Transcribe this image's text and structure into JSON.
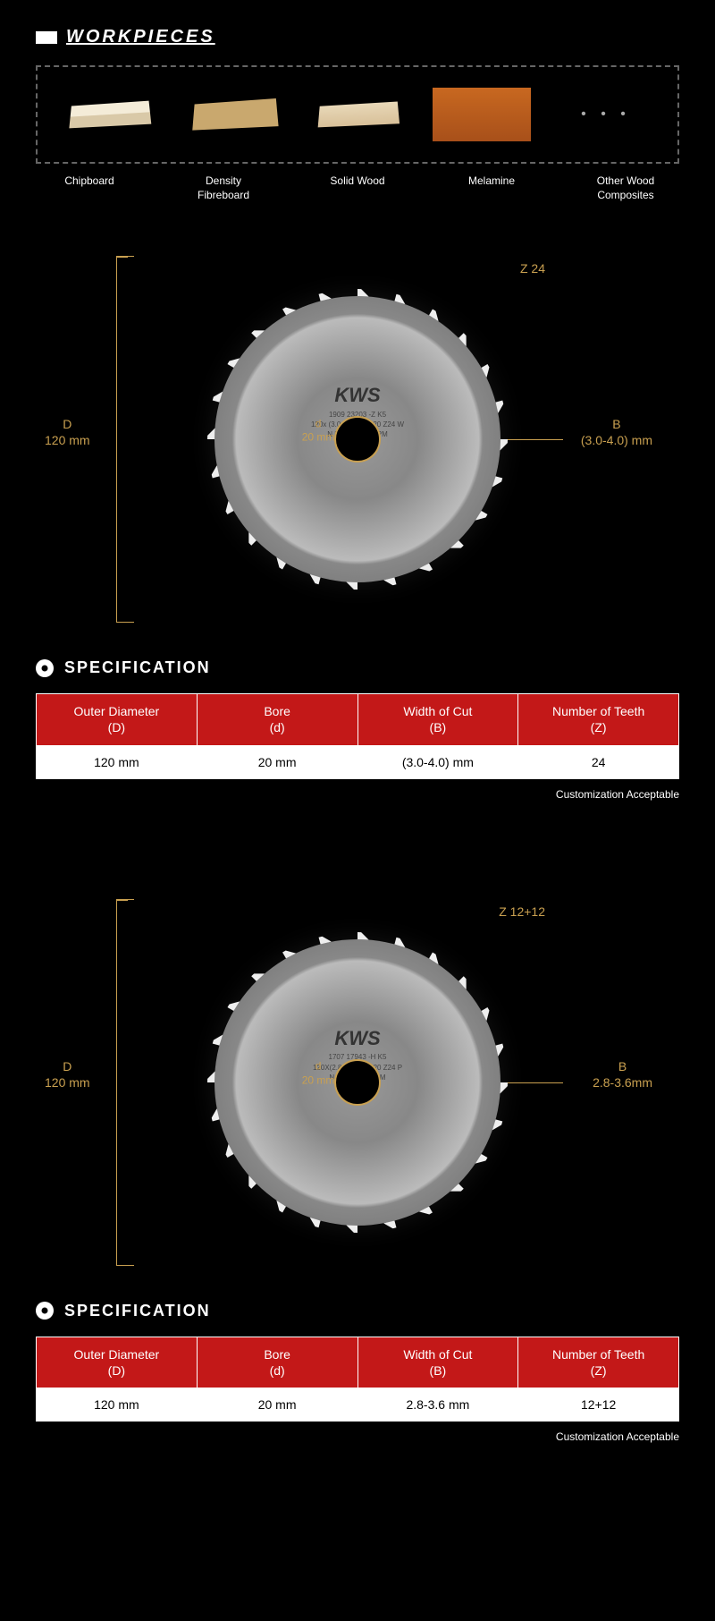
{
  "header": {
    "workpieces_title": "WORKPIECES",
    "spec_title": "SPECIFICATION",
    "customization_note": "Customization Acceptable"
  },
  "workpieces": {
    "items": [
      {
        "label": "Chipboard"
      },
      {
        "label": "Density\nFibreboard"
      },
      {
        "label": "Solid Wood"
      },
      {
        "label": "Melamine"
      },
      {
        "label": "Other Wood\nComposites"
      }
    ],
    "dots": "•   •   •"
  },
  "blade1": {
    "brand": "KWS",
    "brand_sub1": "1909 23203 -Z K5",
    "brand_sub2": "120x (3.0-4.0) /2.2x20 Z24 W",
    "brand_sub3": "N.MAX 12000RPM",
    "D_label": "D",
    "D_value": "120 mm",
    "d_label": "d",
    "d_value": "20 mm",
    "Z_label": "Z 24",
    "B_label": "B",
    "B_value": "(3.0-4.0) mm"
  },
  "spec1": {
    "columns": [
      {
        "h1": "Outer Diameter",
        "h2": "(D)"
      },
      {
        "h1": "Bore",
        "h2": "(d)"
      },
      {
        "h1": "Width of Cut",
        "h2": "(B)"
      },
      {
        "h1": "Number of Teeth",
        "h2": "(Z)"
      }
    ],
    "row": [
      "120 mm",
      "20 mm",
      "(3.0-4.0) mm",
      "24"
    ]
  },
  "blade2": {
    "brand": "KWS",
    "brand_sub1": "1707 17943 -H K5",
    "brand_sub2": "120X(2.8-3.6)/2.2X20 Z24 P",
    "brand_sub3": "N.MAX 1200RPM",
    "D_label": "D",
    "D_value": "120 mm",
    "d_label": "d",
    "d_value": "20 mm",
    "Z_label": "Z 12+12",
    "B_label": "B",
    "B_value": "2.8-3.6mm"
  },
  "spec2": {
    "columns": [
      {
        "h1": "Outer Diameter",
        "h2": "(D)"
      },
      {
        "h1": "Bore",
        "h2": "(d)"
      },
      {
        "h1": "Width of Cut",
        "h2": "(B)"
      },
      {
        "h1": "Number of Teeth",
        "h2": "(Z)"
      }
    ],
    "row": [
      "120 mm",
      "20 mm",
      "2.8-3.6 mm",
      "12+12"
    ]
  },
  "colors": {
    "accent": "#c9a050",
    "red": "#c31818"
  }
}
